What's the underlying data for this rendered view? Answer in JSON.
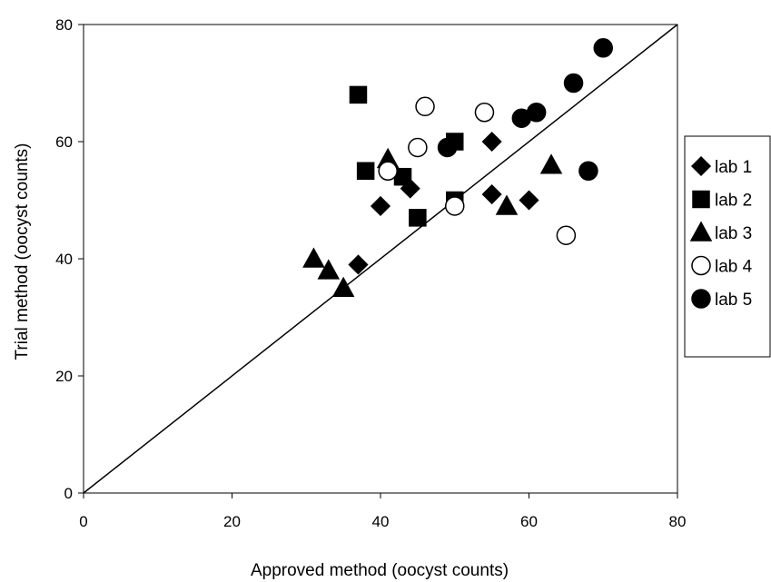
{
  "chart_data": {
    "type": "scatter",
    "title": "",
    "xlabel": "Approved method (oocyst counts)",
    "ylabel": "Trial method (oocyst counts)",
    "xlim": [
      0,
      80
    ],
    "ylim": [
      0,
      80
    ],
    "xticks": [
      "0",
      "20",
      "40",
      "60",
      "80"
    ],
    "yticks": [
      "0",
      "20",
      "40",
      "60",
      "80"
    ],
    "grid": false,
    "legend_position": "right",
    "reference_line": {
      "from": [
        0,
        0
      ],
      "to": [
        80,
        80
      ]
    },
    "series": [
      {
        "name": "lab 1",
        "marker": "diamond",
        "filled": true,
        "points": [
          [
            37,
            39
          ],
          [
            40,
            49
          ],
          [
            44,
            52
          ],
          [
            55,
            60
          ],
          [
            55,
            51
          ],
          [
            60,
            50
          ]
        ]
      },
      {
        "name": "lab 2",
        "marker": "square",
        "filled": true,
        "points": [
          [
            37,
            68
          ],
          [
            38,
            55
          ],
          [
            43,
            54
          ],
          [
            45,
            47
          ],
          [
            50,
            60
          ],
          [
            50,
            50
          ]
        ]
      },
      {
        "name": "lab 3",
        "marker": "triangle",
        "filled": true,
        "points": [
          [
            31,
            40
          ],
          [
            33,
            38
          ],
          [
            35,
            35
          ],
          [
            41,
            57
          ],
          [
            57,
            49
          ],
          [
            63,
            56
          ]
        ]
      },
      {
        "name": "lab 4",
        "marker": "circle",
        "filled": false,
        "points": [
          [
            41,
            55
          ],
          [
            45,
            59
          ],
          [
            46,
            66
          ],
          [
            50,
            49
          ],
          [
            54,
            65
          ],
          [
            65,
            44
          ]
        ]
      },
      {
        "name": "lab 5",
        "marker": "circle",
        "filled": true,
        "points": [
          [
            49,
            59
          ],
          [
            59,
            64
          ],
          [
            61,
            65
          ],
          [
            66,
            70
          ],
          [
            68,
            55
          ],
          [
            70,
            76
          ]
        ]
      }
    ]
  }
}
